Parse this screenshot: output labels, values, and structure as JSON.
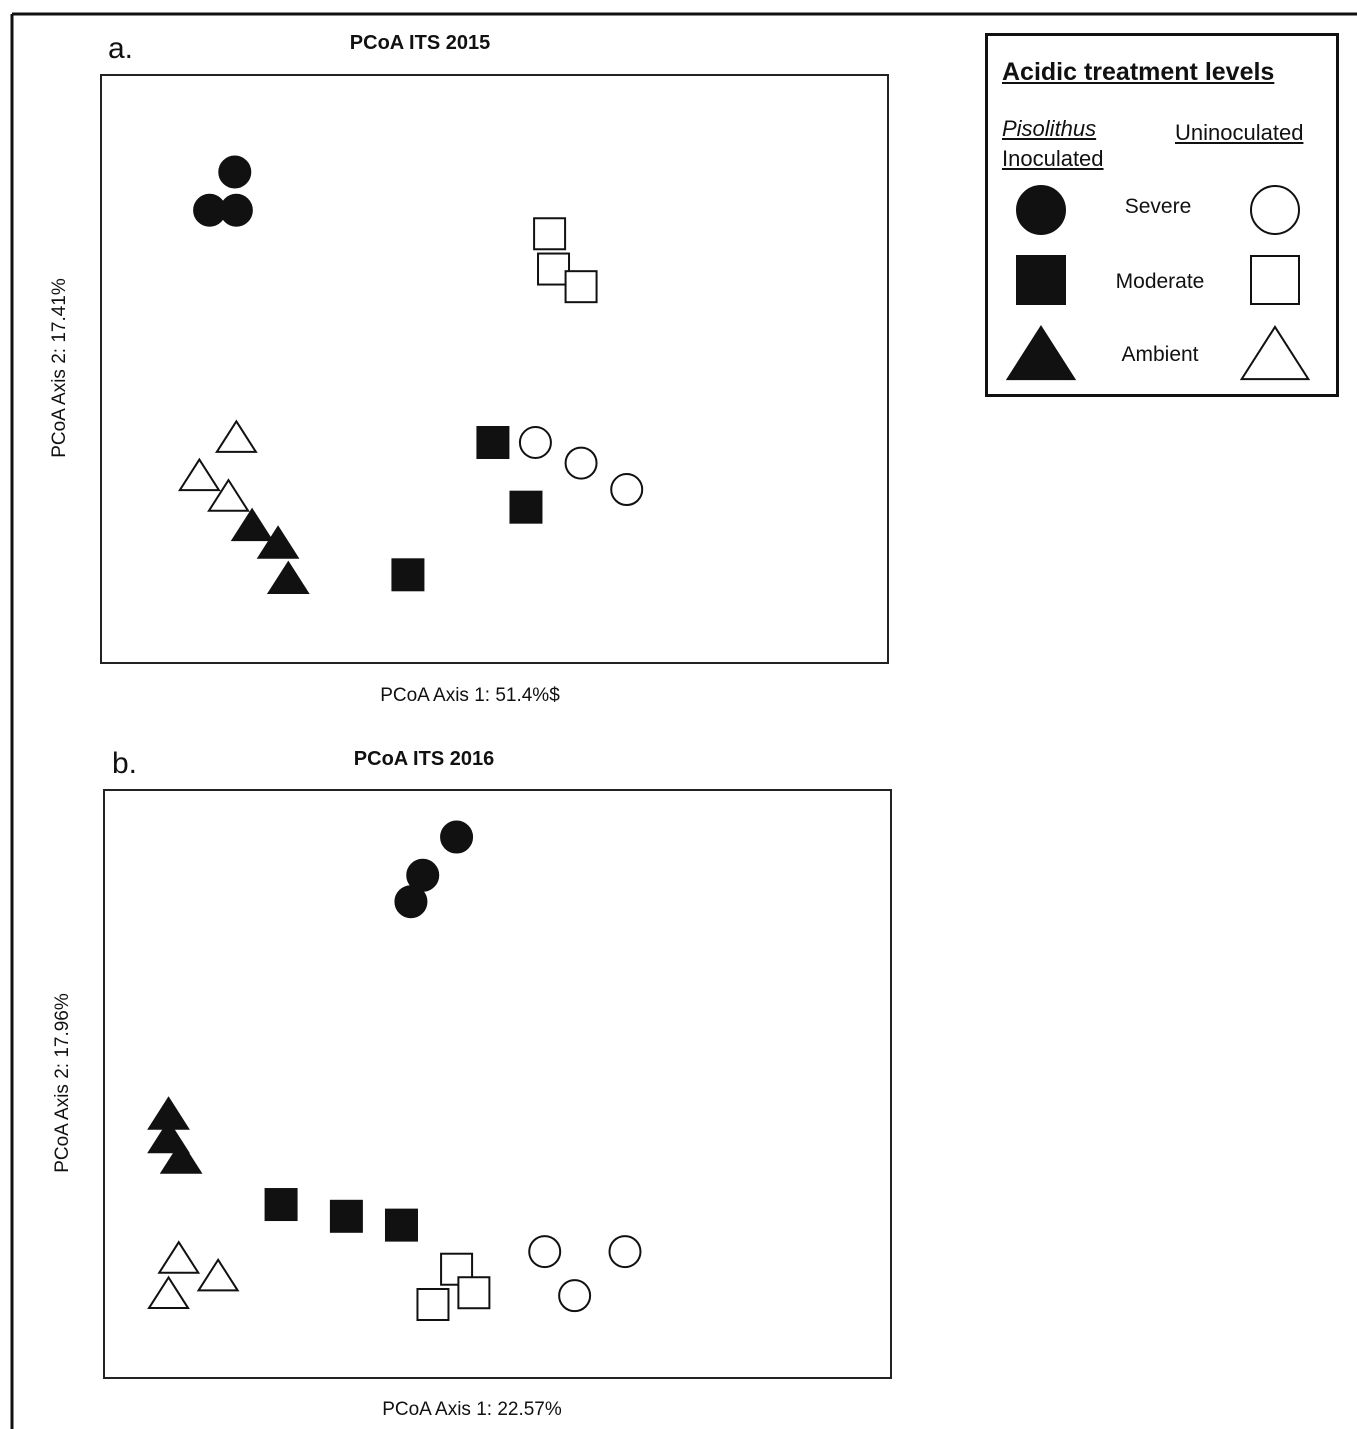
{
  "chart_data": [
    {
      "type": "scatter",
      "panel": "a.",
      "title": "PCoA ITS 2015",
      "xlabel": "PCoA Axis 1: 51.4%$",
      "ylabel": "PCoA Axis 2: 17.41%",
      "xlim": [
        0,
        100
      ],
      "ylim": [
        0,
        100
      ],
      "grid": false,
      "series": [
        {
          "treatment": "Severe",
          "inoculation": "Inoculated",
          "marker": "circle",
          "fill": "filled",
          "points": [
            [
              17.0,
              83.5
            ],
            [
              13.8,
              77.0
            ],
            [
              17.2,
              77.0
            ]
          ]
        },
        {
          "treatment": "Severe",
          "inoculation": "Uninoculated",
          "marker": "circle",
          "fill": "open",
          "points": [
            [
              55.2,
              37.5
            ],
            [
              61.0,
              34.0
            ],
            [
              66.8,
              29.5
            ]
          ]
        },
        {
          "treatment": "Moderate",
          "inoculation": "Inoculated",
          "marker": "square",
          "fill": "filled",
          "points": [
            [
              49.8,
              37.5
            ],
            [
              54.0,
              26.5
            ],
            [
              39.0,
              15.0
            ]
          ]
        },
        {
          "treatment": "Moderate",
          "inoculation": "Uninoculated",
          "marker": "square",
          "fill": "open",
          "points": [
            [
              57.0,
              73.0
            ],
            [
              57.5,
              67.0
            ],
            [
              61.0,
              64.0
            ]
          ]
        },
        {
          "treatment": "Ambient",
          "inoculation": "Inoculated",
          "marker": "triangle",
          "fill": "filled",
          "points": [
            [
              19.2,
              23.5
            ],
            [
              22.5,
              20.5
            ],
            [
              23.8,
              14.5
            ]
          ]
        },
        {
          "treatment": "Ambient",
          "inoculation": "Uninoculated",
          "marker": "triangle",
          "fill": "open",
          "points": [
            [
              17.2,
              38.5
            ],
            [
              12.5,
              32.0
            ],
            [
              16.2,
              28.5
            ]
          ]
        }
      ]
    },
    {
      "type": "scatter",
      "panel": "b.",
      "title": "PCoA ITS 2016",
      "xlabel": "PCoA Axis 1: 22.57%",
      "ylabel": "PCoA Axis 2: 17.96%",
      "xlim": [
        0,
        100
      ],
      "ylim": [
        0,
        100
      ],
      "grid": false,
      "series": [
        {
          "treatment": "Severe",
          "inoculation": "Inoculated",
          "marker": "circle",
          "fill": "filled",
          "points": [
            [
              44.8,
              92.0
            ],
            [
              40.5,
              85.5
            ],
            [
              39.0,
              81.0
            ]
          ]
        },
        {
          "treatment": "Severe",
          "inoculation": "Uninoculated",
          "marker": "circle",
          "fill": "open",
          "points": [
            [
              56.0,
              21.5
            ],
            [
              66.2,
              21.5
            ],
            [
              59.8,
              14.0
            ]
          ]
        },
        {
          "treatment": "Moderate",
          "inoculation": "Inoculated",
          "marker": "square",
          "fill": "filled",
          "points": [
            [
              22.5,
              29.5
            ],
            [
              30.8,
              27.5
            ],
            [
              37.8,
              26.0
            ]
          ]
        },
        {
          "treatment": "Moderate",
          "inoculation": "Uninoculated",
          "marker": "square",
          "fill": "open",
          "points": [
            [
              44.8,
              18.5
            ],
            [
              47.0,
              14.5
            ],
            [
              41.8,
              12.5
            ]
          ]
        },
        {
          "treatment": "Ambient",
          "inoculation": "Inoculated",
          "marker": "triangle",
          "fill": "filled",
          "points": [
            [
              8.2,
              45.0
            ],
            [
              8.2,
              41.0
            ],
            [
              9.8,
              37.5
            ]
          ]
        },
        {
          "treatment": "Ambient",
          "inoculation": "Uninoculated",
          "marker": "triangle",
          "fill": "open",
          "points": [
            [
              9.5,
              20.5
            ],
            [
              14.5,
              17.5
            ],
            [
              8.2,
              14.5
            ]
          ]
        }
      ]
    }
  ],
  "legend": {
    "title": "Acidic treatment levels",
    "columns": {
      "inoculated_line1": "Pisolithus",
      "inoculated_line2": "Inoculated",
      "uninoculated": "Uninoculated"
    },
    "rows": [
      {
        "label": "Severe",
        "marker": "circle"
      },
      {
        "label": "Moderate",
        "marker": "square"
      },
      {
        "label": "Ambient",
        "marker": "triangle"
      }
    ]
  },
  "colors": {
    "ink": "#111111",
    "open_fill": "#ffffff"
  }
}
